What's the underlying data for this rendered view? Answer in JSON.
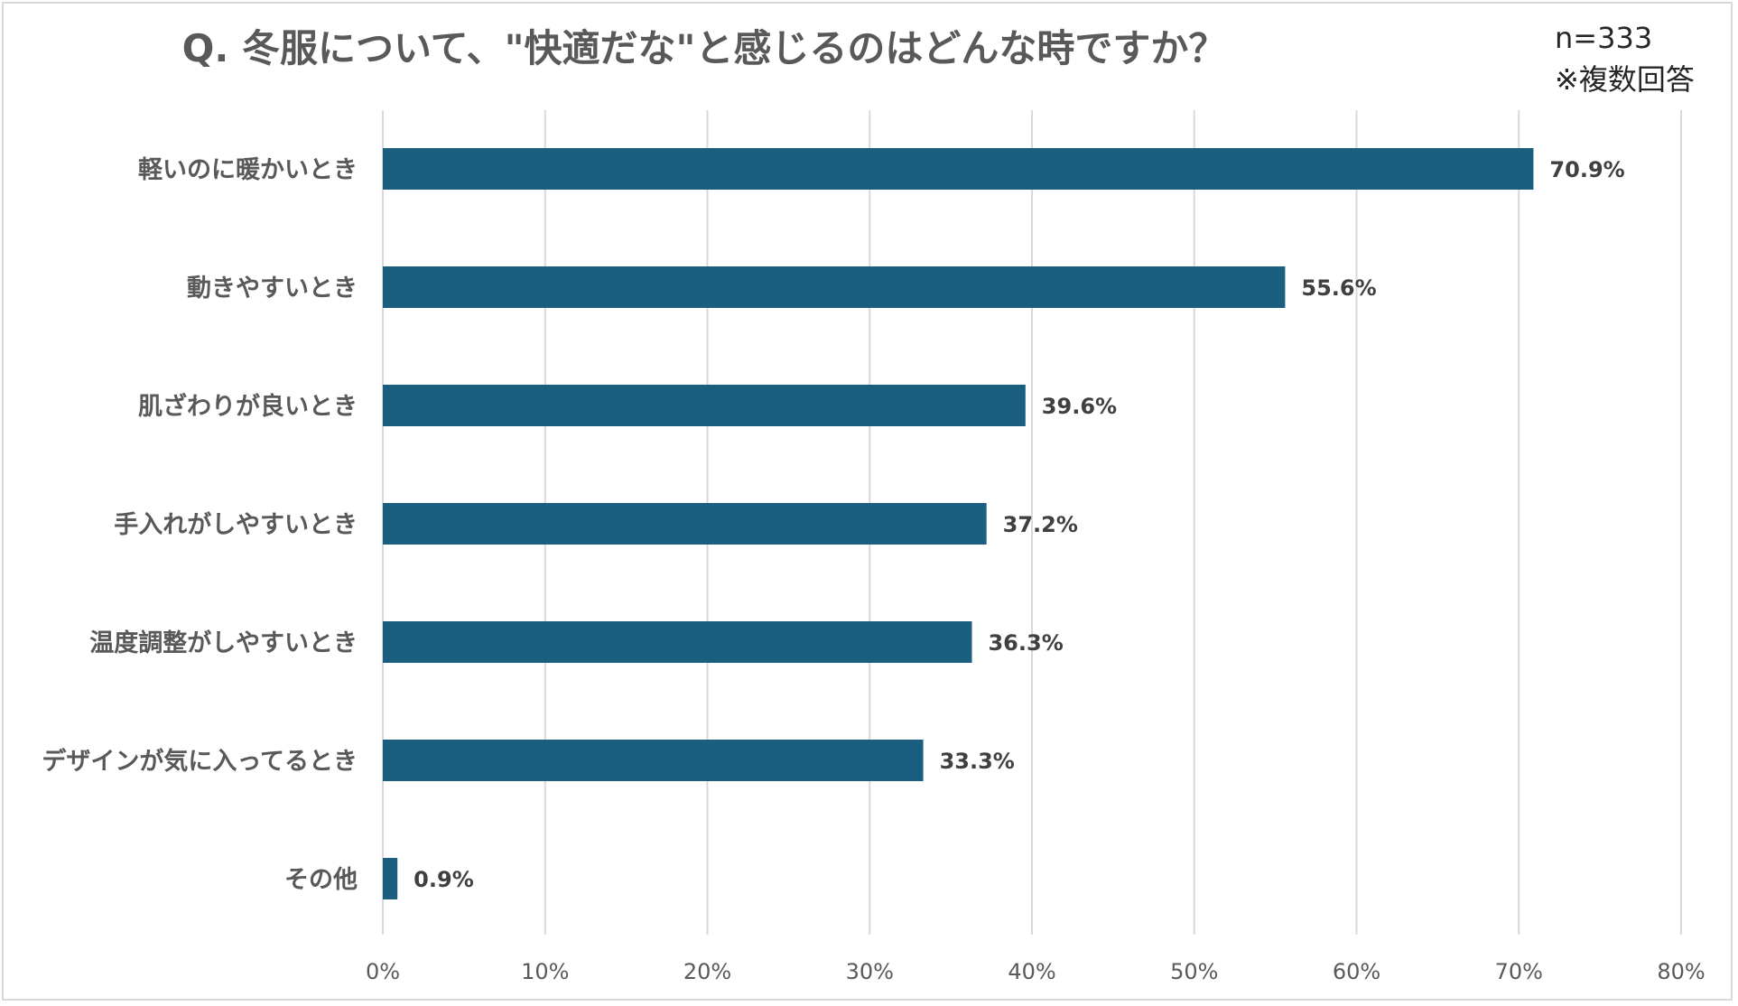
{
  "header": {
    "title": "Q. 冬服について、\"快適だな\"と感じるのはどんな時ですか？",
    "sample_size": "n=333",
    "note": "※複数回答"
  },
  "colors": {
    "bar": "#1a5e80",
    "grid": "#d9d9d9",
    "frame": "#d9d9d9"
  },
  "chart_data": {
    "type": "bar",
    "orientation": "horizontal",
    "title": "Q. 冬服について、\"快適だな\"と感じるのはどんな時ですか？",
    "categories": [
      "軽いのに暖かいとき",
      "動きやすいとき",
      "肌ざわりが良いとき",
      "手入れがしやすいとき",
      "温度調整がしやすいとき",
      "デザインが気に入ってるとき",
      "その他"
    ],
    "values": [
      70.9,
      55.6,
      39.6,
      37.2,
      36.3,
      33.3,
      0.9
    ],
    "value_labels": [
      "70.9%",
      "55.6%",
      "39.6%",
      "37.2%",
      "36.3%",
      "33.3%",
      "0.9%"
    ],
    "xlim": [
      0,
      80
    ],
    "xticks": [
      0,
      10,
      20,
      30,
      40,
      50,
      60,
      70,
      80
    ],
    "xtick_labels": [
      "0%",
      "10%",
      "20%",
      "30%",
      "40%",
      "50%",
      "60%",
      "70%",
      "80%"
    ],
    "xlabel": "",
    "ylabel": "",
    "grid": "vertical"
  }
}
